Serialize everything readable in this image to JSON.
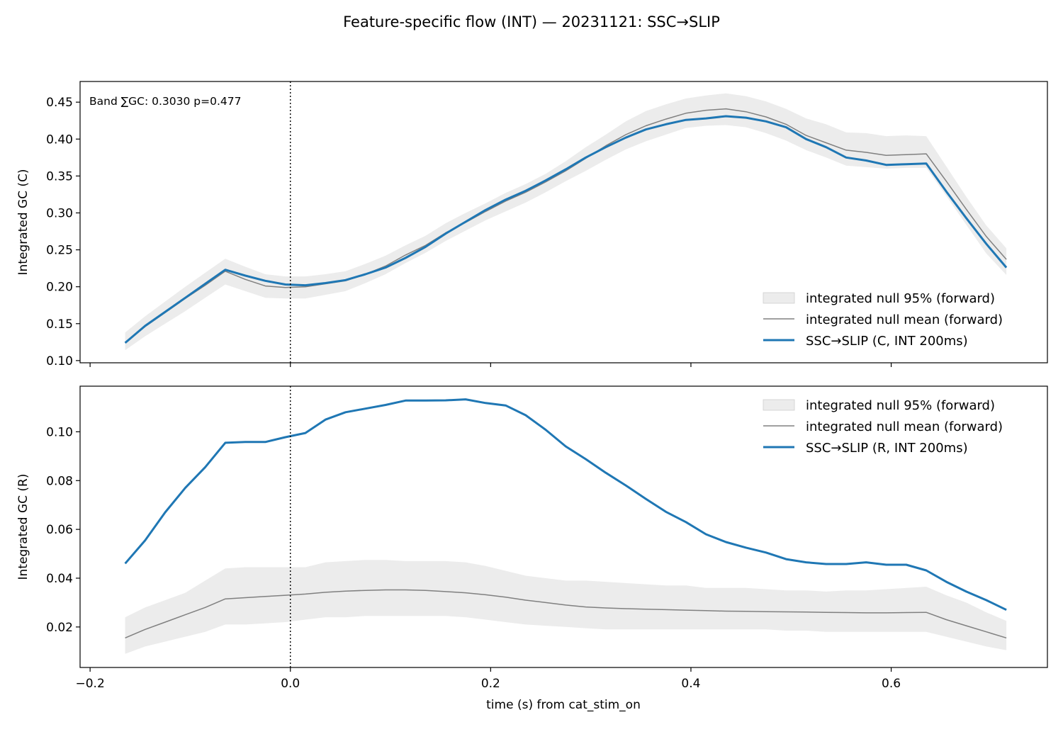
{
  "figure": {
    "title": "Feature-specific flow (INT) — 20231121: SSC→SLIP",
    "xlabel": "time (s) from cat_stim_on"
  },
  "chart_data": [
    {
      "type": "line",
      "ylabel": "Integrated GC (C)",
      "annotation": "Band ∑GC: 0.3030  p=0.477",
      "xlim": [
        -0.21,
        0.756
      ],
      "ylim": [
        0.097,
        0.478
      ],
      "xticks": [
        -0.2,
        0.0,
        0.2,
        0.4,
        0.6
      ],
      "xtick_labels": [
        "−0.2",
        "0.0",
        "0.2",
        "0.4",
        "0.6"
      ],
      "yticks": [
        0.1,
        0.15,
        0.2,
        0.25,
        0.3,
        0.35,
        0.4,
        0.45
      ],
      "ytick_labels": [
        "0.10",
        "0.15",
        "0.20",
        "0.25",
        "0.30",
        "0.35",
        "0.40",
        "0.45"
      ],
      "show_xtick_labels": false,
      "legend_position": "lower right",
      "vline_x": 0.0,
      "x": [
        -0.165,
        -0.145,
        -0.125,
        -0.105,
        -0.085,
        -0.065,
        -0.045,
        -0.025,
        -0.005,
        0.015,
        0.035,
        0.055,
        0.075,
        0.095,
        0.115,
        0.135,
        0.155,
        0.175,
        0.195,
        0.215,
        0.235,
        0.255,
        0.275,
        0.295,
        0.315,
        0.335,
        0.355,
        0.375,
        0.395,
        0.415,
        0.435,
        0.455,
        0.475,
        0.495,
        0.515,
        0.535,
        0.555,
        0.575,
        0.595,
        0.615,
        0.635,
        0.655,
        0.675,
        0.695,
        0.715
      ],
      "series": [
        {
          "name": "integrated null 95% (forward)",
          "kind": "band",
          "color": "#e0e0e0",
          "lower": [
            0.114,
            0.133,
            0.15,
            0.167,
            0.185,
            0.203,
            0.194,
            0.185,
            0.184,
            0.184,
            0.189,
            0.194,
            0.205,
            0.217,
            0.232,
            0.246,
            0.262,
            0.276,
            0.29,
            0.302,
            0.314,
            0.328,
            0.343,
            0.357,
            0.372,
            0.386,
            0.397,
            0.406,
            0.415,
            0.418,
            0.419,
            0.416,
            0.408,
            0.398,
            0.385,
            0.375,
            0.364,
            0.362,
            0.36,
            0.361,
            0.361,
            0.323,
            0.284,
            0.245,
            0.216
          ],
          "upper": [
            0.138,
            0.16,
            0.18,
            0.2,
            0.219,
            0.238,
            0.227,
            0.217,
            0.214,
            0.214,
            0.217,
            0.221,
            0.231,
            0.242,
            0.256,
            0.269,
            0.286,
            0.3,
            0.313,
            0.327,
            0.339,
            0.353,
            0.37,
            0.389,
            0.406,
            0.424,
            0.438,
            0.447,
            0.455,
            0.459,
            0.462,
            0.458,
            0.451,
            0.441,
            0.428,
            0.42,
            0.409,
            0.408,
            0.404,
            0.405,
            0.404,
            0.363,
            0.322,
            0.283,
            0.252
          ]
        },
        {
          "name": "integrated null mean (forward)",
          "kind": "line",
          "color": "#808080",
          "values": [
            0.124,
            0.146,
            0.165,
            0.184,
            0.202,
            0.221,
            0.21,
            0.201,
            0.199,
            0.2,
            0.204,
            0.208,
            0.217,
            0.228,
            0.243,
            0.256,
            0.273,
            0.287,
            0.302,
            0.316,
            0.328,
            0.342,
            0.357,
            0.374,
            0.391,
            0.406,
            0.418,
            0.427,
            0.435,
            0.439,
            0.441,
            0.437,
            0.43,
            0.42,
            0.405,
            0.395,
            0.385,
            0.382,
            0.378,
            0.379,
            0.38,
            0.343,
            0.305,
            0.268,
            0.237
          ]
        },
        {
          "name": "SSC→SLIP (C, INT 200ms)",
          "kind": "line",
          "color": "#1f77b4",
          "values": [
            0.124,
            0.147,
            0.166,
            0.185,
            0.204,
            0.223,
            0.215,
            0.208,
            0.203,
            0.202,
            0.205,
            0.209,
            0.217,
            0.226,
            0.239,
            0.254,
            0.272,
            0.288,
            0.304,
            0.318,
            0.33,
            0.344,
            0.359,
            0.375,
            0.389,
            0.402,
            0.413,
            0.42,
            0.426,
            0.428,
            0.431,
            0.429,
            0.424,
            0.416,
            0.4,
            0.389,
            0.375,
            0.371,
            0.365,
            0.366,
            0.367,
            0.329,
            0.293,
            0.258,
            0.226
          ]
        }
      ]
    },
    {
      "type": "line",
      "ylabel": "Integrated GC (R)",
      "xlim": [
        -0.21,
        0.756
      ],
      "ylim": [
        0.0034,
        0.1187
      ],
      "xticks": [
        -0.2,
        0.0,
        0.2,
        0.4,
        0.6
      ],
      "xtick_labels": [
        "−0.2",
        "0.0",
        "0.2",
        "0.4",
        "0.6"
      ],
      "yticks": [
        0.02,
        0.04,
        0.06,
        0.08,
        0.1
      ],
      "ytick_labels": [
        "0.02",
        "0.04",
        "0.06",
        "0.08",
        "0.10"
      ],
      "show_xtick_labels": true,
      "legend_position": "upper right",
      "vline_x": 0.0,
      "x": [
        -0.165,
        -0.145,
        -0.125,
        -0.105,
        -0.085,
        -0.065,
        -0.045,
        -0.025,
        -0.005,
        0.015,
        0.035,
        0.055,
        0.075,
        0.095,
        0.115,
        0.135,
        0.155,
        0.175,
        0.195,
        0.215,
        0.235,
        0.255,
        0.275,
        0.295,
        0.315,
        0.335,
        0.355,
        0.375,
        0.395,
        0.415,
        0.435,
        0.455,
        0.475,
        0.495,
        0.515,
        0.535,
        0.555,
        0.575,
        0.595,
        0.615,
        0.635,
        0.655,
        0.675,
        0.695,
        0.715
      ],
      "series": [
        {
          "name": "integrated null 95% (forward)",
          "kind": "band",
          "color": "#e0e0e0",
          "lower": [
            0.009,
            0.012,
            0.014,
            0.016,
            0.018,
            0.021,
            0.021,
            0.0215,
            0.022,
            0.023,
            0.024,
            0.024,
            0.0245,
            0.0245,
            0.0245,
            0.0245,
            0.0245,
            0.024,
            0.023,
            0.022,
            0.021,
            0.0205,
            0.02,
            0.0195,
            0.019,
            0.019,
            0.019,
            0.019,
            0.019,
            0.019,
            0.019,
            0.019,
            0.019,
            0.0185,
            0.0185,
            0.018,
            0.018,
            0.018,
            0.018,
            0.018,
            0.018,
            0.016,
            0.014,
            0.012,
            0.0105
          ],
          "upper": [
            0.024,
            0.028,
            0.031,
            0.034,
            0.039,
            0.044,
            0.0445,
            0.0445,
            0.0445,
            0.0445,
            0.0465,
            0.047,
            0.0475,
            0.0475,
            0.047,
            0.047,
            0.047,
            0.0465,
            0.045,
            0.043,
            0.041,
            0.04,
            0.039,
            0.039,
            0.0385,
            0.038,
            0.0375,
            0.037,
            0.037,
            0.036,
            0.036,
            0.036,
            0.0355,
            0.035,
            0.035,
            0.0345,
            0.035,
            0.035,
            0.0355,
            0.036,
            0.0365,
            0.033,
            0.03,
            0.026,
            0.0225
          ]
        },
        {
          "name": "integrated null mean (forward)",
          "kind": "line",
          "color": "#808080",
          "values": [
            0.0155,
            0.019,
            0.022,
            0.025,
            0.028,
            0.0315,
            0.032,
            0.0325,
            0.033,
            0.0335,
            0.0342,
            0.0347,
            0.035,
            0.0352,
            0.0352,
            0.035,
            0.0345,
            0.034,
            0.0332,
            0.0322,
            0.031,
            0.03,
            0.029,
            0.0282,
            0.0278,
            0.0275,
            0.0273,
            0.0271,
            0.0269,
            0.0267,
            0.0265,
            0.0264,
            0.0263,
            0.0262,
            0.0261,
            0.026,
            0.0259,
            0.0258,
            0.0258,
            0.0259,
            0.026,
            0.023,
            0.0205,
            0.018,
            0.0155
          ]
        },
        {
          "name": "SSC→SLIP (R, INT 200ms)",
          "kind": "line",
          "color": "#1f77b4",
          "values": [
            0.046,
            0.0555,
            0.067,
            0.077,
            0.0855,
            0.0955,
            0.0958,
            0.0958,
            0.0978,
            0.0995,
            0.105,
            0.108,
            0.1095,
            0.111,
            0.1128,
            0.1128,
            0.1129,
            0.1133,
            0.1118,
            0.1108,
            0.1068,
            0.1008,
            0.094,
            0.0888,
            0.0832,
            0.078,
            0.0725,
            0.0672,
            0.063,
            0.058,
            0.0548,
            0.0525,
            0.0505,
            0.0478,
            0.0465,
            0.0458,
            0.0458,
            0.0465,
            0.0455,
            0.0455,
            0.0432,
            0.0385,
            0.0345,
            0.031,
            0.027
          ]
        }
      ]
    }
  ]
}
